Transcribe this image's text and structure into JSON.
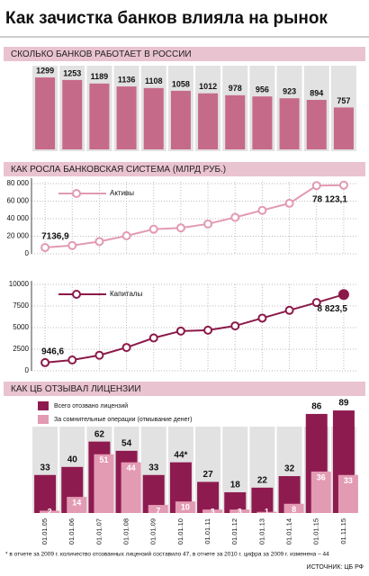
{
  "title": "Как зачистка банков влияла на рынок",
  "chart_data": [
    {
      "type": "bar",
      "title": "СКОЛЬКО БАНКОВ РАБОТАЕТ В РОССИИ",
      "values": [
        1299,
        1253,
        1189,
        1136,
        1108,
        1058,
        1012,
        978,
        956,
        923,
        894,
        757
      ],
      "color": "#c66a8a"
    },
    {
      "type": "line",
      "title": "КАК РОСЛА БАНКОВСКАЯ СИСТЕМА (МЛРД РУБ.)",
      "ylim": [
        0,
        82000
      ],
      "yticks": [
        0,
        {
          "value": 20000,
          "label": "20 000"
        },
        {
          "value": 40000,
          "label": "40 000"
        },
        {
          "value": 60000,
          "label": "60 000"
        },
        {
          "value": 80000,
          "label": "80 000"
        }
      ],
      "series": [
        {
          "name": "Активы",
          "color": "#e29ab2",
          "values": [
            7136.9,
            9500,
            14000,
            20500,
            28000,
            29500,
            34000,
            41500,
            49500,
            57500,
            77650,
            78123.1
          ],
          "value_labels": [
            "7136,9",
            null,
            null,
            null,
            null,
            null,
            null,
            null,
            null,
            null,
            null,
            "78 123,1"
          ]
        }
      ]
    },
    {
      "type": "line",
      "ylim": [
        0,
        10000
      ],
      "yticks": [
        0,
        2500,
        5000,
        7500,
        10000
      ],
      "series": [
        {
          "name": "Капиталы",
          "color": "#8b1a4a",
          "values": [
            946.6,
            1250,
            1800,
            2700,
            3800,
            4600,
            4700,
            5200,
            6100,
            7000,
            7900,
            8823.5
          ],
          "value_labels": [
            "946,6",
            null,
            null,
            null,
            null,
            null,
            null,
            null,
            null,
            null,
            null,
            "8 823,5"
          ]
        }
      ]
    },
    {
      "type": "grouped-bar",
      "title": "КАК ЦБ ОТЗЫВАЛ ЛИЦЕНЗИИ",
      "categories": [
        "01.01.05",
        "01.01.06",
        "01.01.07",
        "01.01.08",
        "01.01.09",
        "01.01.10",
        "01.01.11",
        "01.01.12",
        "01.01.13",
        "01.01.14",
        "01.01.15",
        "01.11.15"
      ],
      "series": [
        {
          "name": "Всего отозвано лицензий",
          "color": "#8e1b4f",
          "values": [
            33,
            40,
            62,
            54,
            33,
            44,
            27,
            18,
            22,
            32,
            86,
            89
          ],
          "value_labels": [
            "33",
            "40",
            "62",
            "54",
            "33",
            "44*",
            "27",
            "18",
            "22",
            "32",
            "86",
            "89"
          ]
        },
        {
          "name": "За сомнительные операции (отмывание денег)",
          "color": "#e39ab3",
          "values": [
            2,
            14,
            51,
            44,
            7,
            10,
            3,
            3,
            1,
            8,
            36,
            33
          ]
        }
      ]
    }
  ],
  "footnote": "* в отчете за 2009 г. количество отозванных лицензий составило 47, в отчете за 2010 г. цифра за 2009 г. изменена – 44",
  "source": "ИСТОЧНИК: ЦБ РФ"
}
